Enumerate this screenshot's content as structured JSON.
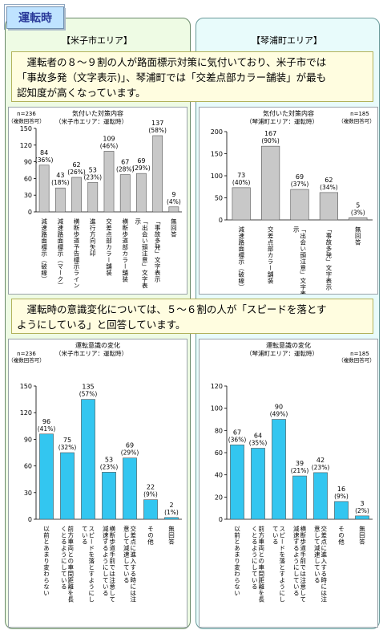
{
  "tag": "運転時",
  "area_left": "【米子市エリア】",
  "area_right": "【琴浦町エリア】",
  "note1": [
    "運転者の８～９割の人が路面標示対策に気付いており、米子市では",
    "「事故多発（文字表示)」、琴浦町では「交差点部カラー舗装」が最も",
    "認知度が高くなっています。"
  ],
  "note2": [
    "運転時の意識変化については、５～６割の人が「スピードを落とす",
    "ようにしている」と回答しています。"
  ],
  "chart_data": [
    {
      "type": "bar",
      "title": "気付いた対策内容",
      "subtitle": "（米子市エリア：運転時）",
      "n_label": "n=236",
      "n_note": "（複数回答可）",
      "ylim": [
        0,
        150
      ],
      "yticks": [
        0,
        30,
        60,
        90,
        120,
        150
      ],
      "categories": [
        "減速路面標示（破線）",
        "減速路面標示（マーク）",
        "横断歩道予告標示ライン",
        "進行方向矢印",
        "交差点部カラー舗装",
        "横断歩道部カラー舗装",
        "「出会い頭注意」文字表示",
        "「事故多発」文字表示",
        "無回答"
      ],
      "values": [
        84,
        43,
        62,
        53,
        109,
        67,
        69,
        137,
        9
      ],
      "pct": [
        "(36%)",
        "(18%)",
        "(26%)",
        "(23%)",
        "(46%)",
        "(28%)",
        "(29%)",
        "(58%)",
        "(4%)"
      ],
      "bar_color": "#c8c8c8"
    },
    {
      "type": "bar",
      "title": "気付いた対策内容",
      "subtitle": "（琴浦町エリア：運転時）",
      "n_label": "n=185",
      "n_note": "（複数回答可）",
      "ylim": [
        0,
        200
      ],
      "yticks": [
        0,
        50,
        100,
        150,
        200
      ],
      "categories": [
        "減速路面標示（破線）",
        "交差点部カラー舗装",
        "「出会い頭注意」文字表示",
        "「事故多発」文字表示",
        "無回答"
      ],
      "values": [
        73,
        167,
        69,
        62,
        5
      ],
      "pct": [
        "(40%)",
        "(90%)",
        "(37%)",
        "(34%)",
        "(3%)"
      ],
      "bar_color": "#c8c8c8"
    },
    {
      "type": "bar",
      "title": "運転意識の変化",
      "subtitle": "（米子市エリア：運転時）",
      "n_label": "n=236",
      "n_note": "（複数回答可）",
      "ylim": [
        0,
        150
      ],
      "yticks": [
        0,
        30,
        60,
        90,
        120,
        150
      ],
      "categories": [
        "以前とあまり変わらない",
        "前方車両との車間距離を長くとるようにしている",
        "スピードを落とすようにしている",
        "横断歩道手前では注意して減速するようにしている",
        "交差点に進入する時には注意して減速している",
        "その他",
        "無回答"
      ],
      "values": [
        96,
        75,
        135,
        53,
        69,
        22,
        2
      ],
      "pct": [
        "(41%)",
        "(32%)",
        "(57%)",
        "(23%)",
        "(29%)",
        "(9%)",
        "(1%)"
      ],
      "bar_color": "#33c6f0"
    },
    {
      "type": "bar",
      "title": "運転意識の変化",
      "subtitle": "（琴浦町エリア：運転時）",
      "n_label": "n=185",
      "n_note": "（複数回答可）",
      "ylim": [
        0,
        120
      ],
      "yticks": [
        0,
        20,
        40,
        60,
        80,
        100,
        120
      ],
      "categories": [
        "以前とあまり変わらない",
        "前方車両との車間距離を長くとるようにしている",
        "スピードを落とすようにしている",
        "横断歩道手前では注意して減速するようにしている",
        "交差点に進入する時には注意して減速している",
        "その他",
        "無回答"
      ],
      "values": [
        67,
        64,
        90,
        39,
        42,
        16,
        3
      ],
      "pct": [
        "(36%)",
        "(35%)",
        "(49%)",
        "(21%)",
        "(23%)",
        "(9%)",
        "(2%)"
      ],
      "bar_color": "#33c6f0"
    }
  ]
}
